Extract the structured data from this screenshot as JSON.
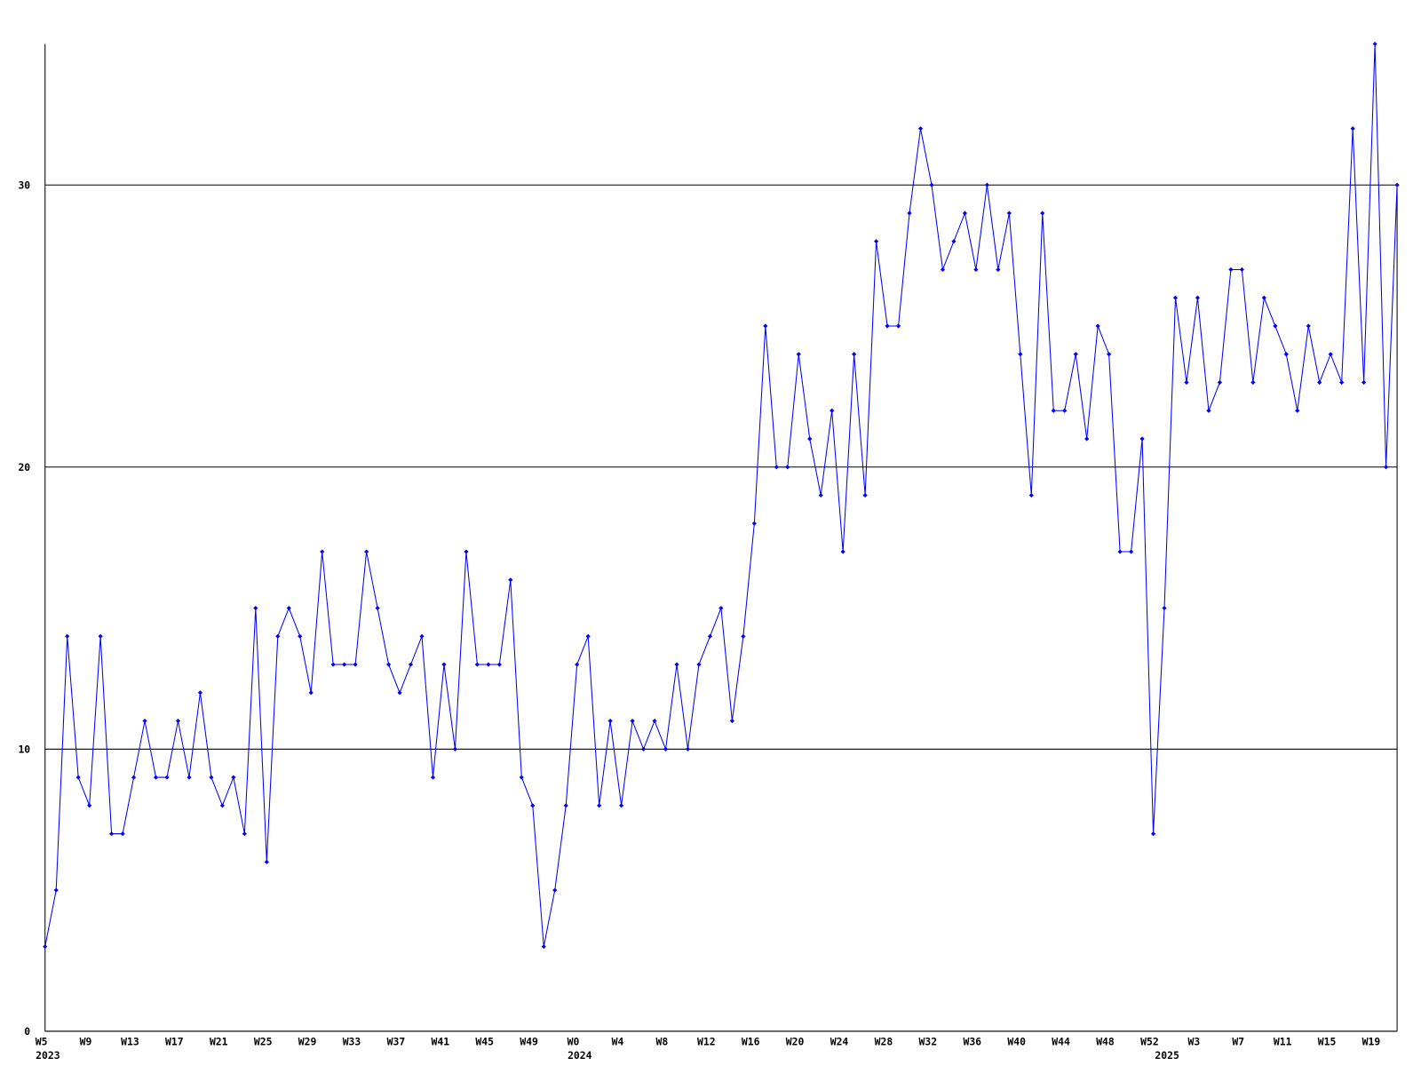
{
  "chart_data": {
    "type": "line",
    "categories": [
      "W5",
      null,
      null,
      null,
      "W9",
      null,
      null,
      null,
      "W13",
      null,
      null,
      null,
      "W17",
      null,
      null,
      null,
      "W21",
      null,
      null,
      null,
      "W25",
      null,
      null,
      null,
      "W29",
      null,
      null,
      null,
      "W33",
      null,
      null,
      null,
      "W37",
      null,
      null,
      null,
      "W41",
      null,
      null,
      null,
      "W45",
      null,
      null,
      null,
      "W49",
      null,
      null,
      null,
      "W0",
      null,
      null,
      null,
      "W4",
      null,
      null,
      null,
      "W8",
      null,
      null,
      null,
      "W12",
      null,
      null,
      null,
      "W16",
      null,
      null,
      null,
      "W20",
      null,
      null,
      null,
      "W24",
      null,
      null,
      null,
      "W28",
      null,
      null,
      null,
      "W32",
      null,
      null,
      null,
      "W36",
      null,
      null,
      null,
      "W40",
      null,
      null,
      null,
      "W44",
      null,
      null,
      null,
      "W48",
      null,
      null,
      null,
      "W52",
      null,
      null,
      null,
      "W3",
      null,
      null,
      null,
      "W7",
      null,
      null,
      null,
      "W11",
      null,
      null,
      null,
      "W15",
      null,
      null,
      null,
      "W19",
      null,
      null
    ],
    "years": [
      "2023",
      null,
      null,
      null,
      null,
      null,
      null,
      null,
      null,
      null,
      null,
      null,
      null,
      null,
      null,
      null,
      null,
      null,
      null,
      null,
      null,
      null,
      null,
      null,
      null,
      null,
      null,
      null,
      null,
      null,
      null,
      null,
      null,
      null,
      null,
      null,
      null,
      null,
      null,
      null,
      null,
      null,
      null,
      null,
      null,
      null,
      null,
      null,
      "2024",
      null,
      null,
      null,
      null,
      null,
      null,
      null,
      null,
      null,
      null,
      null,
      null,
      null,
      null,
      null,
      null,
      null,
      null,
      null,
      null,
      null,
      null,
      null,
      null,
      null,
      null,
      null,
      null,
      null,
      null,
      null,
      null,
      null,
      null,
      null,
      null,
      null,
      null,
      null,
      null,
      null,
      null,
      null,
      null,
      null,
      null,
      null,
      null,
      null,
      null,
      null,
      null,
      "2025",
      null,
      null,
      null,
      null,
      null,
      null,
      null,
      null,
      null,
      null,
      null,
      null,
      null,
      null,
      null,
      null,
      null,
      null,
      null,
      null,
      null
    ],
    "series": [
      {
        "color": "#0000ff",
        "values": [
          3,
          5,
          14,
          9,
          8,
          14,
          7,
          7,
          9,
          11,
          9,
          9,
          11,
          9,
          12,
          9,
          8,
          9,
          7,
          15,
          6,
          14,
          15,
          14,
          12,
          17,
          13,
          13,
          13,
          17,
          15,
          13,
          12,
          13,
          14,
          9,
          13,
          10,
          17,
          13,
          13,
          13,
          16,
          9,
          8,
          3,
          5,
          8,
          13,
          14,
          8,
          11,
          8,
          11,
          10,
          11,
          10,
          13,
          10,
          13,
          14,
          15,
          11,
          14,
          18,
          25,
          20,
          20,
          24,
          21,
          19,
          22,
          17,
          24,
          19,
          28,
          25,
          25,
          29,
          32,
          30,
          27,
          28,
          29,
          27,
          30,
          27,
          29,
          24,
          19,
          29,
          22,
          22,
          24,
          21,
          25,
          24,
          17,
          17,
          21,
          7,
          15,
          26,
          23,
          26,
          22,
          23,
          27,
          27,
          23,
          26,
          25,
          24,
          22,
          25,
          23,
          24,
          23,
          32,
          23,
          35,
          20,
          30
        ]
      }
    ],
    "ylim": [
      0,
      35
    ],
    "yticks": [
      0,
      10,
      20,
      30
    ],
    "grid": true
  }
}
